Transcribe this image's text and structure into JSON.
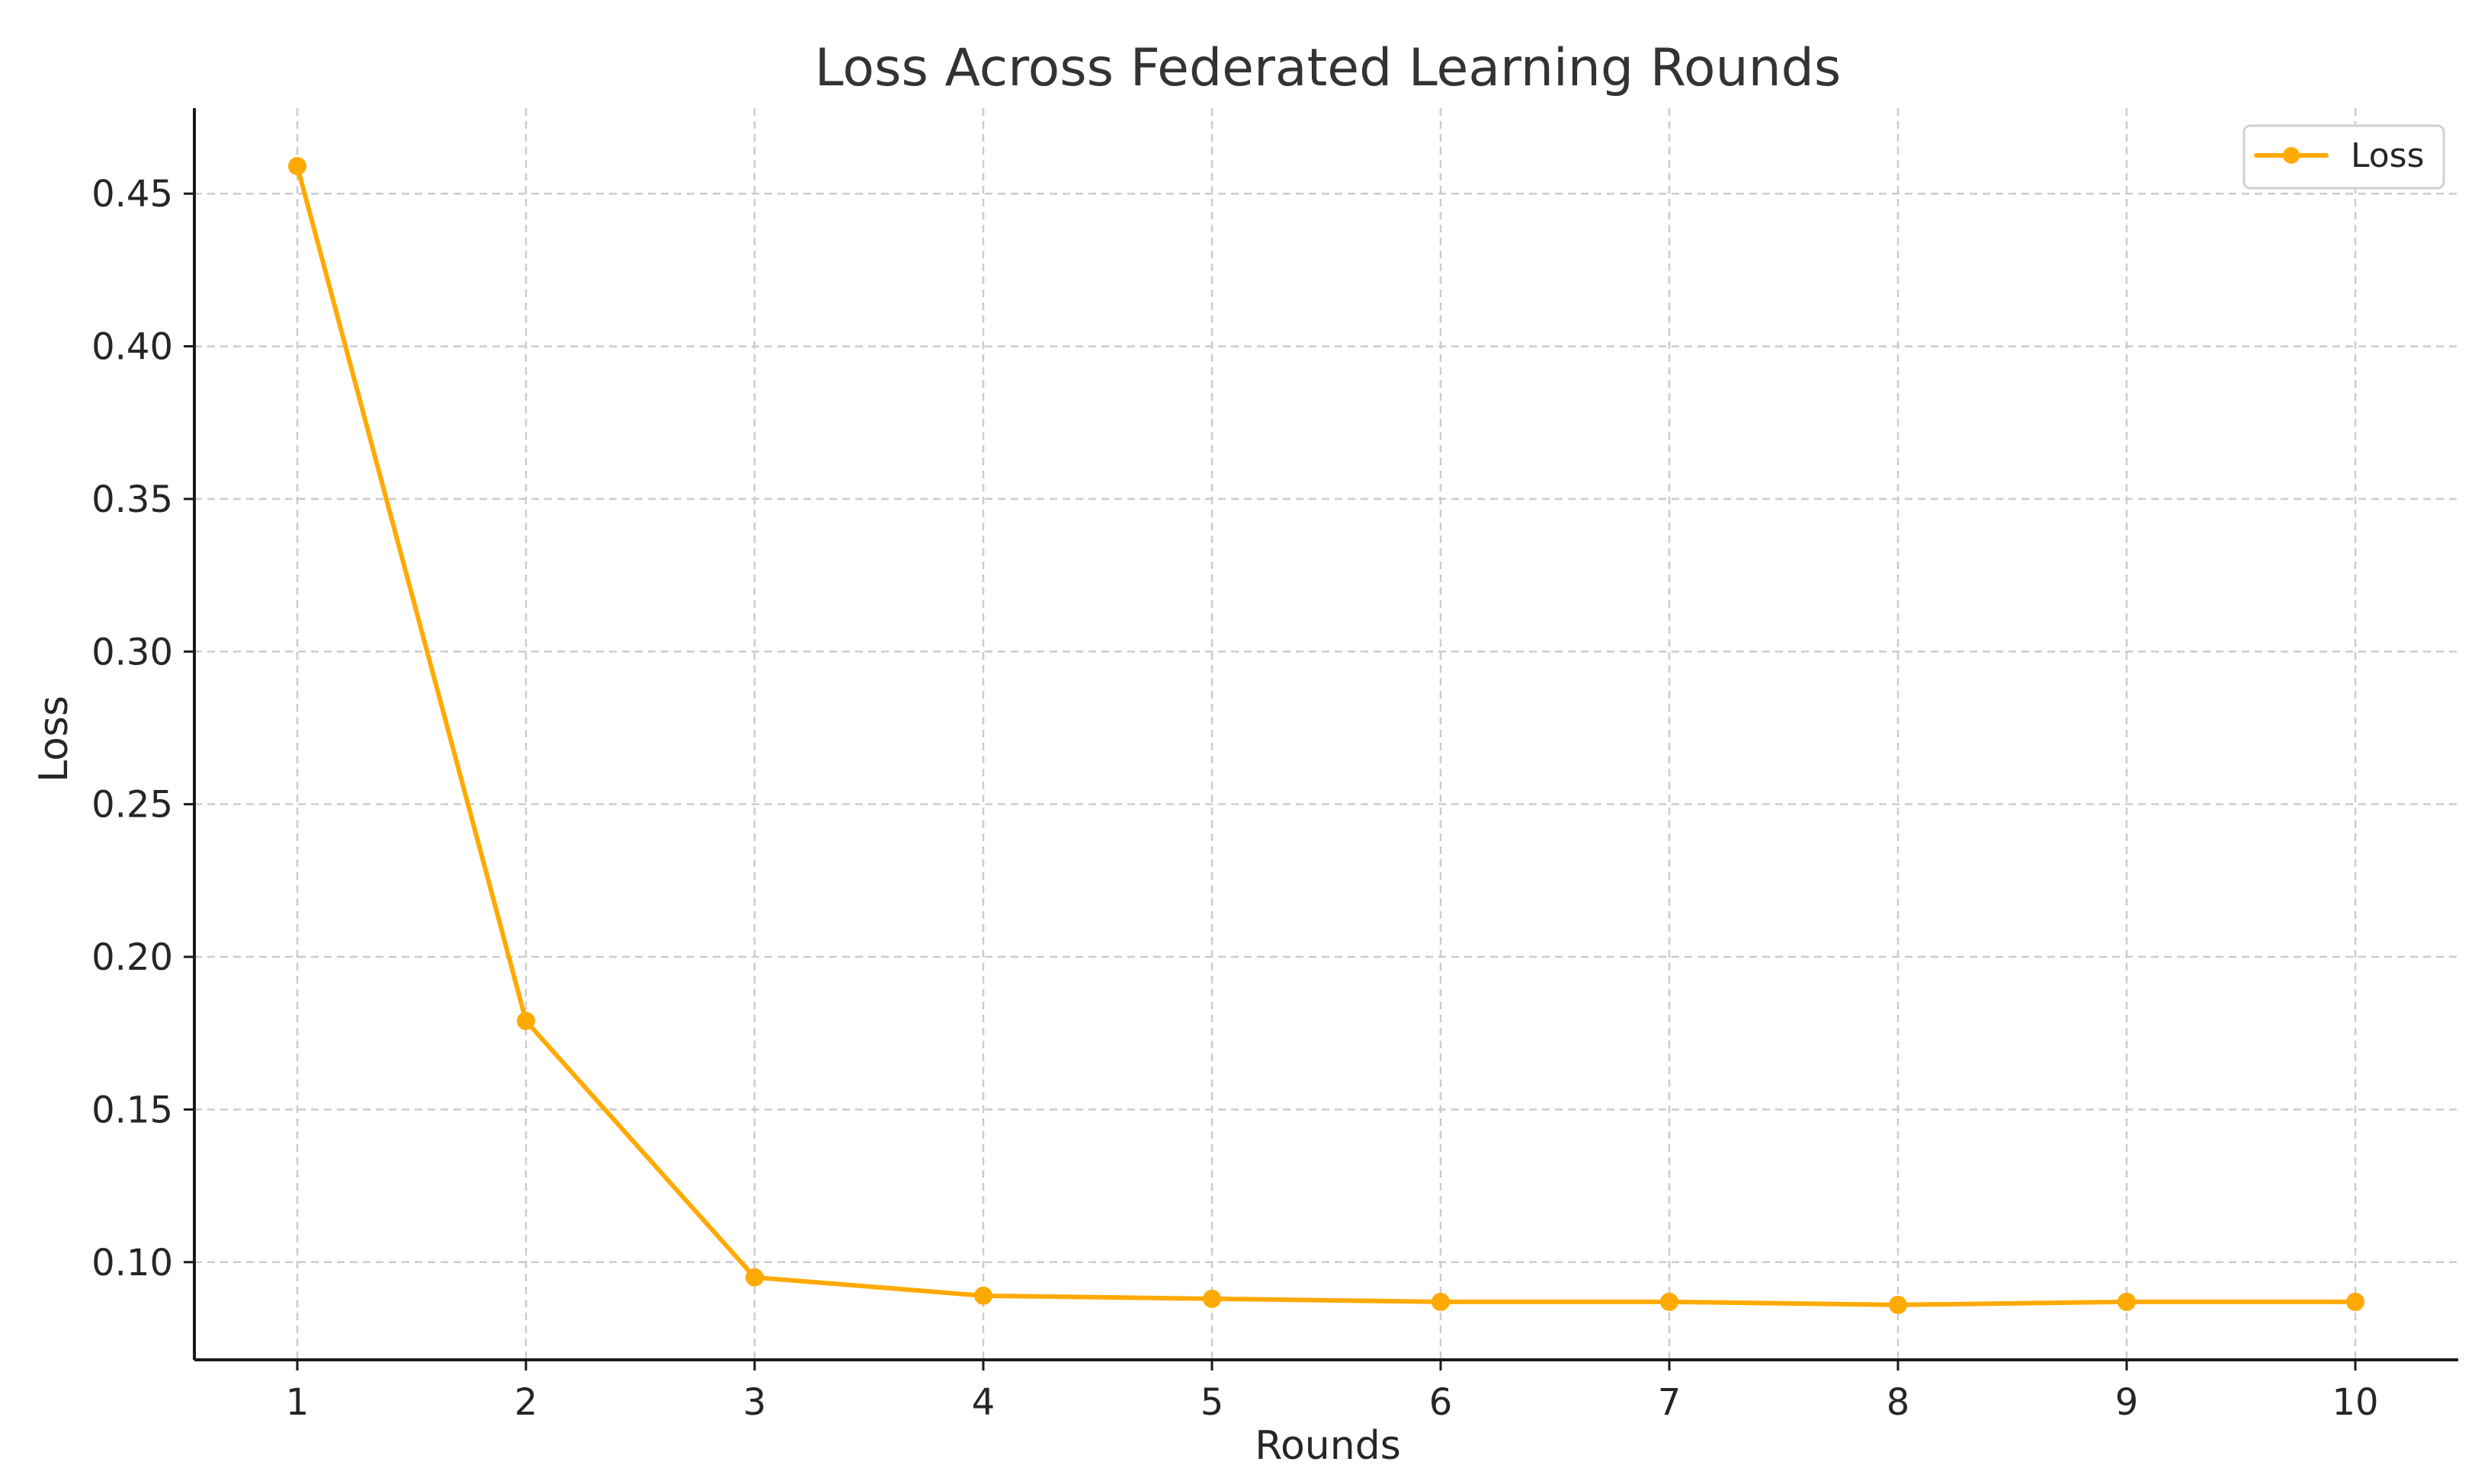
{
  "chart_data": {
    "type": "line",
    "title": "Loss Across Federated Learning Rounds",
    "xlabel": "Rounds",
    "ylabel": "Loss",
    "x": [
      1,
      2,
      3,
      4,
      5,
      6,
      7,
      8,
      9,
      10
    ],
    "series": [
      {
        "name": "Loss",
        "color": "#FFAA00",
        "values": [
          0.459,
          0.179,
          0.095,
          0.089,
          0.088,
          0.087,
          0.087,
          0.086,
          0.087,
          0.087
        ]
      }
    ],
    "xlim": [
      0.55,
      10.45
    ],
    "ylim": [
      0.068,
      0.478
    ],
    "xticks": [
      1,
      2,
      3,
      4,
      5,
      6,
      7,
      8,
      9,
      10
    ],
    "xtick_labels": [
      "1",
      "2",
      "3",
      "4",
      "5",
      "6",
      "7",
      "8",
      "9",
      "10"
    ],
    "yticks": [
      0.1,
      0.15,
      0.2,
      0.25,
      0.3,
      0.35,
      0.4,
      0.45
    ],
    "ytick_labels": [
      "0.10",
      "0.15",
      "0.20",
      "0.25",
      "0.30",
      "0.35",
      "0.40",
      "0.45"
    ],
    "grid": true,
    "legend_position": "top-right"
  }
}
